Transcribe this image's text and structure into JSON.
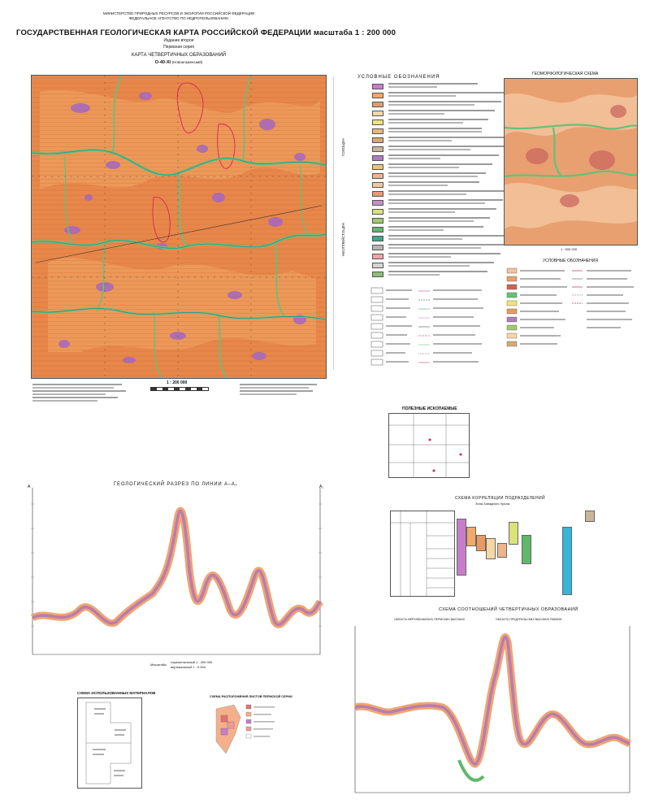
{
  "header": {
    "ministry": "МИНИСТЕРСТВО ПРИРОДНЫХ РЕСУРСОВ И ЭКОЛОГИИ РОССИЙСКОЙ ФЕДЕРАЦИИ",
    "agency": "ФЕДЕРАЛЬНОЕ АГЕНТСТВО ПО НЕДРОПОЛЬЗОВАНИЮ",
    "title": "ГОСУДАРСТВЕННАЯ ГЕОЛОГИЧЕСКАЯ КАРТА РОССИЙСКОЙ ФЕДЕРАЦИИ масштаба 1 : 200 000",
    "edition": "Издание второе",
    "series": "Пермская серия",
    "map_title": "КАРТА ЧЕТВЕРТИЧНЫХ ОБРАЗОВАНИЙ",
    "sheet": "О-40-XI",
    "sheet_name": "(Новоильвенский)"
  },
  "main_map": {
    "scale": "1 : 200 000",
    "bottom_left_notes_visible": true
  },
  "legend": {
    "title": "УСЛОВНЫЕ ОБОЗНАЧЕНИЯ",
    "swatch_colors": [
      "#c77ec9",
      "#f2a86b",
      "#e99a63",
      "#f6d7a4",
      "#f1e27a",
      "#e7b96f",
      "#d8a872",
      "#c9b59a",
      "#b07cc0",
      "#e8c287",
      "#efb48a",
      "#f6c79b",
      "#e69a74",
      "#c68fc8",
      "#d9e37a",
      "#9fc96d",
      "#5fb86b",
      "#3fa68c",
      "#b5b5b5",
      "#f1a4a4",
      "#d5d5d5",
      "#8fbf77"
    ],
    "side_labels": [
      "ГОЛОЦЕН",
      "НЕОПЛЕЙСТОЦЕН"
    ]
  },
  "geomorph": {
    "title": "ГЕОМОРФОЛОГИЧЕСКАЯ СХЕМА",
    "scale": "1 : 500 000",
    "legend_title": "УСЛОВНЫЕ ОБОЗНАЧЕНИЯ"
  },
  "minerals": {
    "title": "ПОЛЕЗНЫЕ ИСКОПАЕМЫЕ"
  },
  "section": {
    "title": "ГЕОЛОГИЧЕСКИЙ РАЗРЕЗ ПО ЛИНИИ А–А₁",
    "left_label": "А",
    "right_label": "А₁",
    "scale_h": "горизонтальный 1 : 200 000",
    "scale_v": "вертикальный 1 : 5 000",
    "scale_word": "Масштабы"
  },
  "correlation": {
    "title": "СХЕМА КОРРЕЛЯЦИИ ПОДРАЗДЕЛЕНИЙ",
    "subtitle": "Зона Западного Урала",
    "colors": [
      "#c77ec9",
      "#f2a86b",
      "#e99a63",
      "#f6d7a4",
      "#efb48a",
      "#d9e37a",
      "#5fb86b",
      "#36b6d8",
      "#c9b59a"
    ]
  },
  "relations": {
    "title": "СХЕМА СООТНОШЕНИЙ ЧЕТВЕРТИЧНЫХ ОБРАЗОВАНИЙ",
    "left_caption": "ОБЛАСТЬ ВЕРХНЕКАМСКИХ ПЕРМСКИХ ВЫСОКИХ",
    "right_caption": "ОБЛАСТЬ ПРЕДУРАЛЬСКИХ ВЫСОКИХ РАВНИН"
  },
  "materials": {
    "title": "СХЕМА ИСПОЛЬЗОВАННЫХ МАТЕРИАЛОВ"
  },
  "sheets_scheme": {
    "title": "СХЕМА РАСПОЛОЖЕНИЯ ЛИСТОВ ПЕРМСКОЙ СЕРИИ"
  }
}
